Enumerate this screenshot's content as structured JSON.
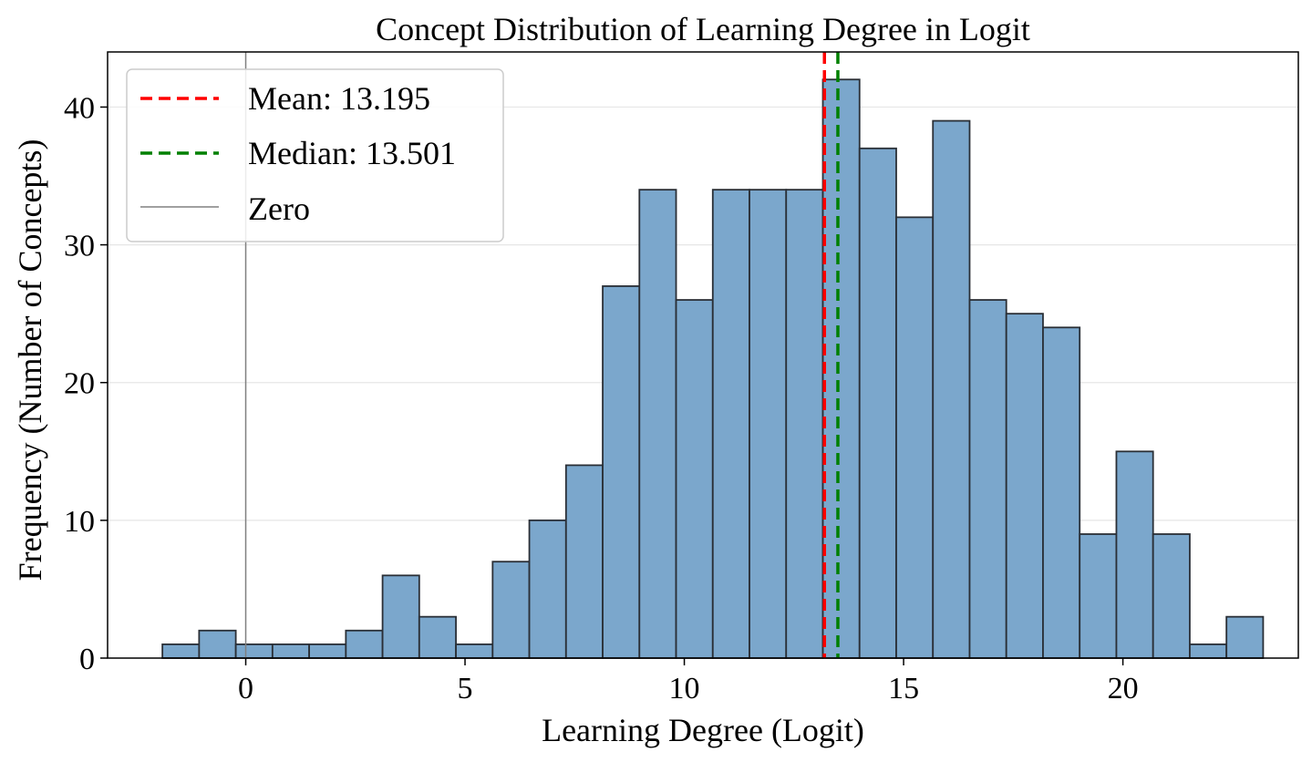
{
  "chart_data": {
    "type": "bar",
    "title": "Concept Distribution of Learning Degree in Logit",
    "xlabel": "Learning Degree (Logit)",
    "ylabel": "Frequency (Number of Concepts)",
    "xlim": [
      -3.15,
      24.0
    ],
    "ylim": [
      0,
      44
    ],
    "xticks": [
      0,
      5,
      10,
      15,
      20
    ],
    "yticks": [
      0,
      10,
      20,
      30,
      40
    ],
    "grid": "y",
    "legend_position": "upper-left",
    "colors": {
      "bar_fill": "#7ba7cc",
      "bar_edge": "#2a2f36",
      "mean_line": "#ff0000",
      "median_line": "#008000",
      "zero_line": "#808080",
      "grid": "#e6e6e6"
    },
    "bins": {
      "start": -1.9,
      "width": 0.8366,
      "counts": [
        1,
        2,
        1,
        1,
        1,
        2,
        6,
        3,
        1,
        7,
        10,
        14,
        27,
        34,
        26,
        34,
        34,
        34,
        42,
        37,
        32,
        39,
        26,
        25,
        24,
        9,
        15,
        9,
        1,
        3
      ]
    },
    "lines": {
      "mean": {
        "value": 13.195,
        "label": "Mean: 13.195"
      },
      "median": {
        "value": 13.501,
        "label": "Median: 13.501"
      },
      "zero": {
        "value": 0,
        "label": "Zero"
      }
    }
  }
}
